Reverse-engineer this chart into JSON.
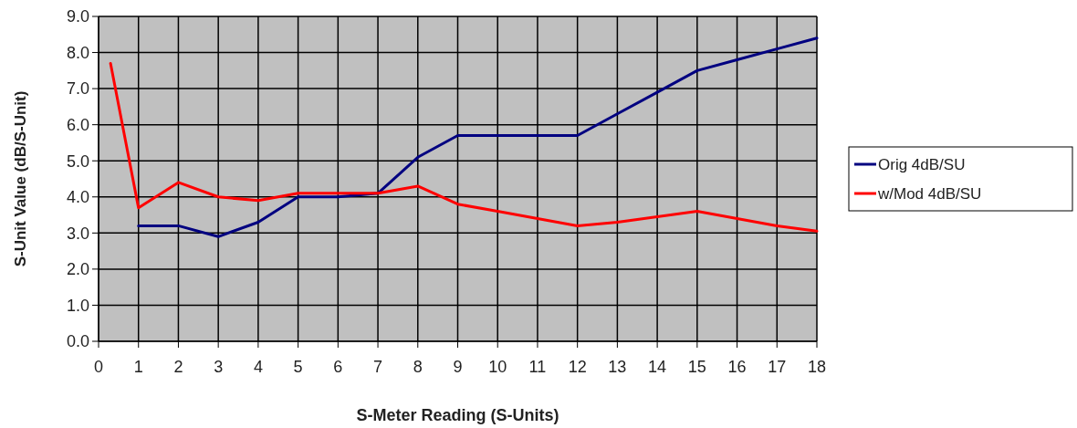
{
  "chart_data": {
    "type": "line",
    "xlabel": "S-Meter Reading (S-Units)",
    "ylabel": "S-Unit Value (dB/S-Unit)",
    "xlim": [
      0,
      18
    ],
    "xticks": [
      0,
      1,
      2,
      3,
      4,
      5,
      6,
      7,
      8,
      9,
      10,
      11,
      12,
      13,
      14,
      15,
      16,
      17,
      18
    ],
    "ylim": [
      0,
      9
    ],
    "yticks": [
      {
        "value": 0,
        "label": "0.0"
      },
      {
        "value": 1,
        "label": "1.0"
      },
      {
        "value": 2,
        "label": "2.0"
      },
      {
        "value": 3,
        "label": "3.0"
      },
      {
        "value": 4,
        "label": "4.0"
      },
      {
        "value": 5,
        "label": "5.0"
      },
      {
        "value": 6,
        "label": "6.0"
      },
      {
        "value": 7,
        "label": "7.0"
      },
      {
        "value": 8,
        "label": "8.0"
      },
      {
        "value": 9,
        "label": "9.0"
      }
    ],
    "grid": true,
    "legend": "right",
    "marker": "none",
    "line_style": "solid",
    "series": [
      {
        "name": "Orig 4dB/SU",
        "color": "#000080",
        "x": [
          1,
          2,
          3,
          4,
          5,
          6,
          7,
          8,
          9,
          10,
          11,
          12,
          13,
          14,
          15,
          16,
          17,
          18
        ],
        "values": [
          3.2,
          3.2,
          2.9,
          3.3,
          4.0,
          4.0,
          4.1,
          5.1,
          5.7,
          5.7,
          5.7,
          5.7,
          6.3,
          6.9,
          7.5,
          7.8,
          8.1,
          8.4
        ]
      },
      {
        "name": "w/Mod 4dB/SU",
        "color": "#ff0000",
        "x": [
          0.3,
          1,
          2,
          3,
          4,
          5,
          6,
          7,
          8,
          9,
          10,
          11,
          12,
          13,
          14,
          15,
          16,
          17,
          18
        ],
        "values": [
          7.7,
          3.7,
          4.4,
          4.0,
          3.9,
          4.1,
          4.1,
          4.1,
          4.3,
          3.8,
          3.6,
          3.4,
          3.2,
          3.3,
          3.45,
          3.6,
          3.4,
          3.2,
          3.05
        ]
      }
    ]
  }
}
